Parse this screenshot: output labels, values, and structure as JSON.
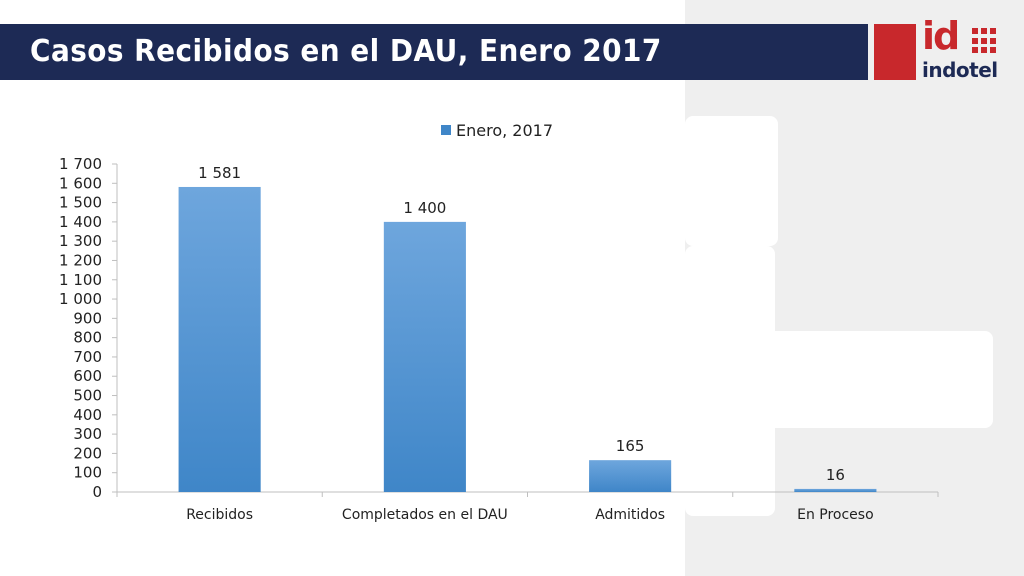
{
  "slide": {
    "title": "Casos Recibidos en el DAU, Enero 2017",
    "logo": {
      "top_text": "id",
      "bottom_text": "indotel"
    }
  },
  "colors": {
    "title_bar": "#1d2a55",
    "bar_top": "#6ea6dd",
    "bar_bottom": "#3f86c8",
    "logo_red": "#c8282c",
    "background_panel": "#efefef"
  },
  "chart_data": {
    "type": "bar",
    "categories": [
      "Recibidos",
      "Completados en el DAU",
      "Admitidos",
      "En Proceso"
    ],
    "series": [
      {
        "name": "Enero, 2017",
        "values": [
          1581,
          1400,
          165,
          16
        ]
      }
    ],
    "data_labels": [
      "1 581",
      "1 400",
      "165",
      "16"
    ],
    "ylim": [
      0,
      1700
    ],
    "y_ticks": [
      0,
      100,
      200,
      300,
      400,
      500,
      600,
      700,
      800,
      900,
      1000,
      1100,
      1200,
      1300,
      1400,
      1500,
      1600,
      1700
    ],
    "y_tick_labels": [
      "0",
      "100",
      "200",
      "300",
      "400",
      "500",
      "600",
      "700",
      "800",
      "900",
      "1 000",
      "1 100",
      "1 200",
      "1 300",
      "1 400",
      "1 500",
      "1 600",
      "1 700"
    ],
    "legend_position": "top",
    "grid": false
  }
}
